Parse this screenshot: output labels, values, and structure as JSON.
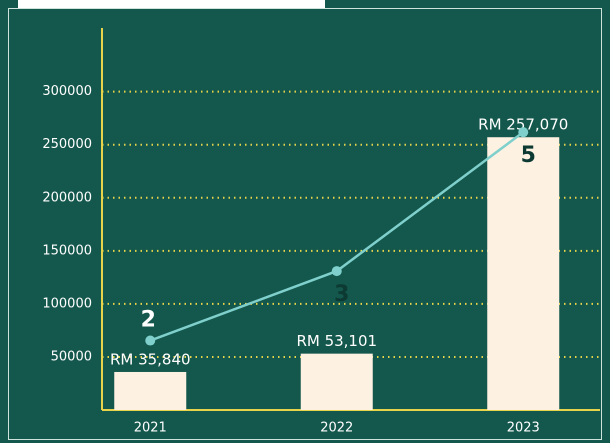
{
  "chart_data": {
    "type": "bar",
    "categories": [
      "2021",
      "2022",
      "2023"
    ],
    "series": [
      {
        "type": "bar",
        "color": "#fdf1e2",
        "values": [
          35840,
          53101,
          257070
        ],
        "value_labels": [
          "RM 35,840",
          "RM 53,101",
          "RM 257,070"
        ]
      },
      {
        "type": "line",
        "axis": "y2",
        "color": "#7fd0cc",
        "values": [
          2,
          3,
          5
        ]
      }
    ],
    "ylim": [
      0,
      360000
    ],
    "yticks": [
      50000,
      100000,
      150000,
      200000,
      250000,
      300000
    ],
    "y2lim": [
      1,
      6.5
    ],
    "grid": true
  }
}
